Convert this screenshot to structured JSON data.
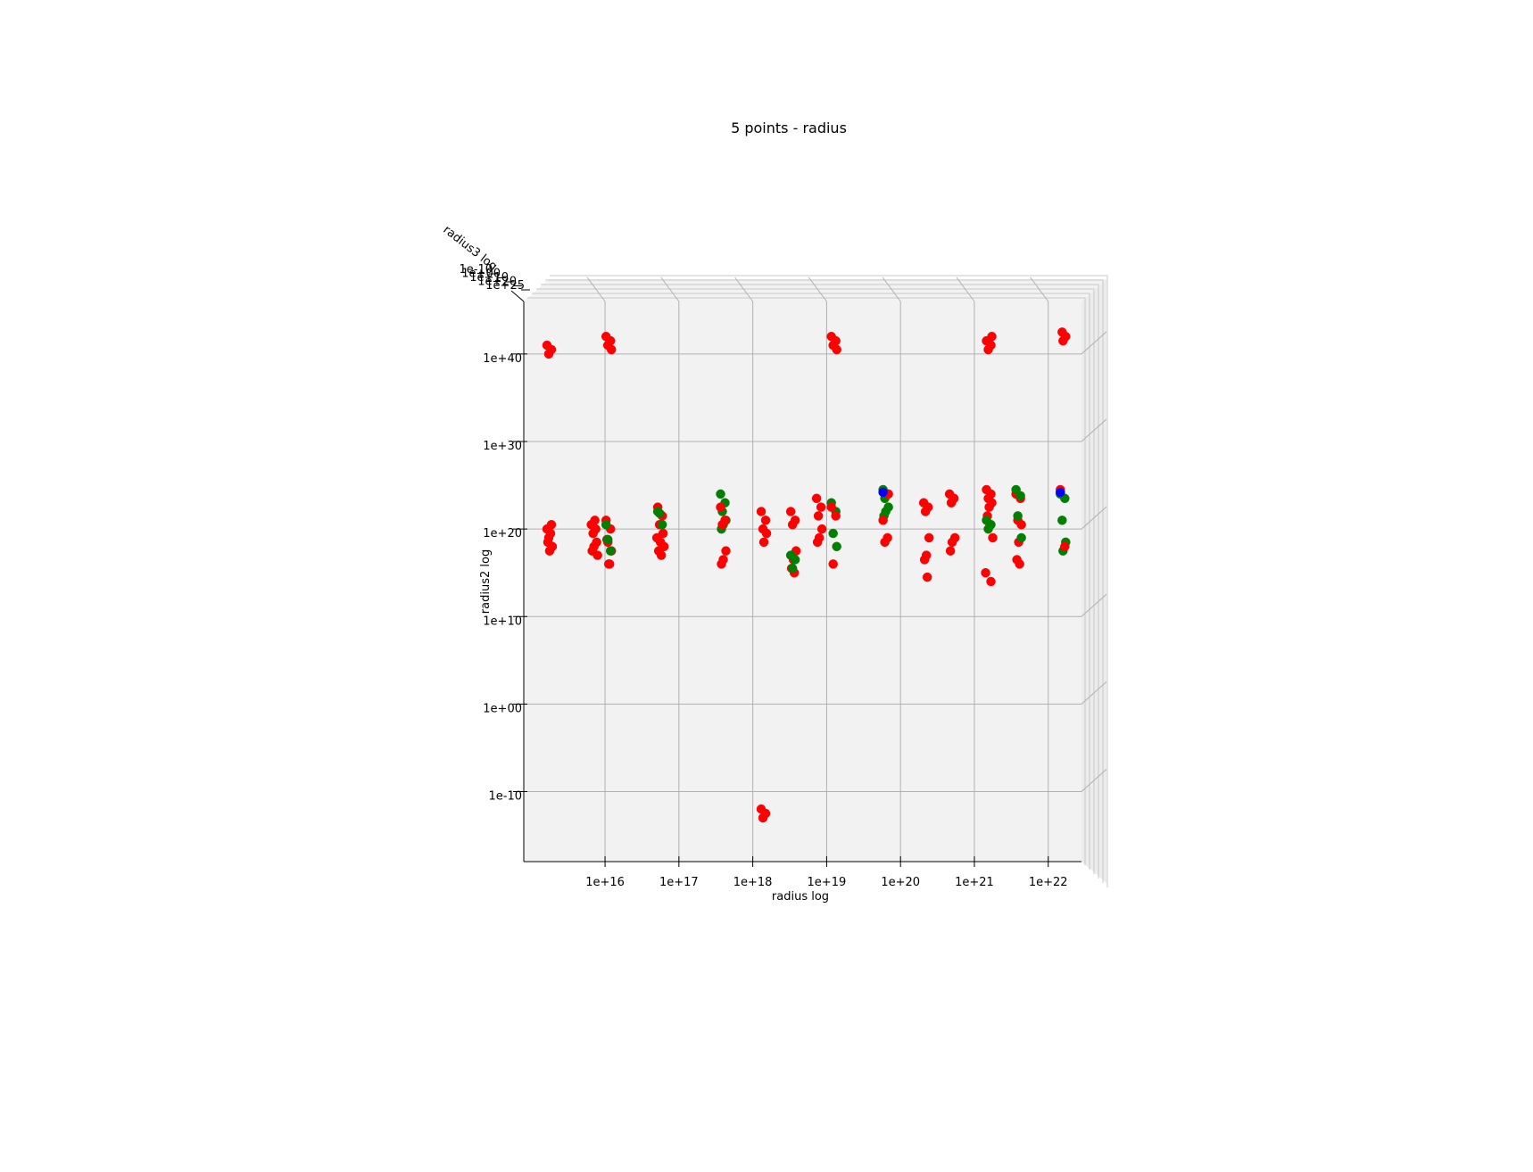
{
  "chart_data": {
    "type": "scatter",
    "title": "5 points - radius",
    "xlabel": "radius log",
    "ylabel": "radius2 log",
    "zlabel": "radius3 log",
    "x_scale": "log",
    "y_scale": "log",
    "x_ticks": [
      "1e+16",
      "1e+17",
      "1e+18",
      "1e+19",
      "1e+20",
      "1e+21",
      "1e+22"
    ],
    "y_ticks": [
      "1e-10",
      "1e+00",
      "1e+10",
      "1e+20",
      "1e+30",
      "1e+40"
    ],
    "z_ticks": [
      "1e-10",
      "1e+00",
      "1e+10",
      "1e+20",
      "1e+25"
    ],
    "xlim_log10": [
      14.9,
      22.45
    ],
    "ylim_log10": [
      -18,
      46
    ],
    "grid": true,
    "series_colors": [
      "#ff0000",
      "#007f00",
      "#0000ff"
    ],
    "clusters": [
      {
        "x": 15.25,
        "y": [
          20,
          20.5,
          19,
          18,
          17.5,
          18.5,
          19.5
        ],
        "color": "#ff0000"
      },
      {
        "x": 15.25,
        "y": [
          41,
          40.5,
          40
        ],
        "color": "#ff0000"
      },
      {
        "x": 15.85,
        "y": [
          20.5,
          20,
          19.5,
          18.5,
          18,
          17.5,
          21,
          17
        ],
        "color": "#ff0000"
      },
      {
        "x": 16.05,
        "y": [
          42,
          41.5,
          41,
          40.5
        ],
        "color": "#ff0000"
      },
      {
        "x": 16.05,
        "y": [
          21,
          20,
          18.5,
          17.5,
          16,
          18.8,
          16
        ],
        "color": "#ff0000"
      },
      {
        "x": 16.05,
        "y": [
          20.5,
          17.5,
          18.8
        ],
        "color": "#007f00"
      },
      {
        "x": 16.75,
        "y": [
          22.5,
          21.5,
          20.5,
          19.5,
          18.5,
          17.5,
          17,
          18,
          19
        ],
        "color": "#ff0000"
      },
      {
        "x": 16.75,
        "y": [
          22,
          20.5,
          21.8
        ],
        "color": "#007f00"
      },
      {
        "x": 17.6,
        "y": [
          24,
          23,
          22,
          21,
          20.5,
          20
        ],
        "color": "#007f00"
      },
      {
        "x": 17.6,
        "y": [
          22.5,
          21,
          20.5,
          17.5,
          16.5,
          16
        ],
        "color": "#ff0000"
      },
      {
        "x": 18.15,
        "y": [
          22,
          21,
          20,
          19.5,
          18.5
        ],
        "color": "#ff0000"
      },
      {
        "x": 18.15,
        "y": [
          -12,
          -12.5,
          -13
        ],
        "color": "#ff0000"
      },
      {
        "x": 18.55,
        "y": [
          22,
          21,
          20.5,
          17.5,
          16.5,
          15.5,
          15
        ],
        "color": "#ff0000"
      },
      {
        "x": 18.55,
        "y": [
          17,
          16.5,
          15.5
        ],
        "color": "#007f00"
      },
      {
        "x": 18.9,
        "y": [
          23.5,
          22.5,
          21.5,
          20,
          19,
          18.5
        ],
        "color": "#ff0000"
      },
      {
        "x": 19.1,
        "y": [
          42,
          41.5,
          41,
          40.5
        ],
        "color": "#ff0000"
      },
      {
        "x": 19.1,
        "y": [
          23,
          22,
          19.5,
          18
        ],
        "color": "#007f00"
      },
      {
        "x": 19.1,
        "y": [
          22.5,
          21.5,
          16
        ],
        "color": "#ff0000"
      },
      {
        "x": 19.8,
        "y": [
          24.5,
          24,
          23.5,
          22.5,
          22,
          21.5
        ],
        "color": "#007f00"
      },
      {
        "x": 19.8,
        "y": [
          21,
          19,
          18.5,
          24
        ],
        "color": "#ff0000"
      },
      {
        "x": 19.8,
        "y": [
          24.2
        ],
        "color": "#0000ff"
      },
      {
        "x": 20.35,
        "y": [
          23,
          22.5,
          22,
          19,
          17,
          16.5,
          14.5
        ],
        "color": "#ff0000"
      },
      {
        "x": 20.7,
        "y": [
          24,
          23.5,
          23,
          19,
          18.5,
          17.5
        ],
        "color": "#ff0000"
      },
      {
        "x": 21.2,
        "y": [
          24.5,
          24,
          23.5,
          23,
          22.5,
          21.5,
          20.5,
          19,
          15,
          14
        ],
        "color": "#ff0000"
      },
      {
        "x": 21.2,
        "y": [
          41.5,
          41,
          40.5,
          42
        ],
        "color": "#ff0000"
      },
      {
        "x": 21.2,
        "y": [
          21,
          20.5,
          20
        ],
        "color": "#007f00"
      },
      {
        "x": 21.6,
        "y": [
          24,
          23.5,
          21,
          20.5,
          18.5,
          16.5,
          16
        ],
        "color": "#ff0000"
      },
      {
        "x": 21.6,
        "y": [
          24.5,
          23.8,
          21.5,
          19
        ],
        "color": "#007f00"
      },
      {
        "x": 22.2,
        "y": [
          24,
          23.5,
          21,
          18.5,
          17.5
        ],
        "color": "#007f00"
      },
      {
        "x": 22.2,
        "y": [
          24.5,
          18,
          42.5,
          42,
          41.5
        ],
        "color": "#ff0000"
      },
      {
        "x": 22.2,
        "y": [
          24.2
        ],
        "color": "#0000ff"
      }
    ]
  }
}
